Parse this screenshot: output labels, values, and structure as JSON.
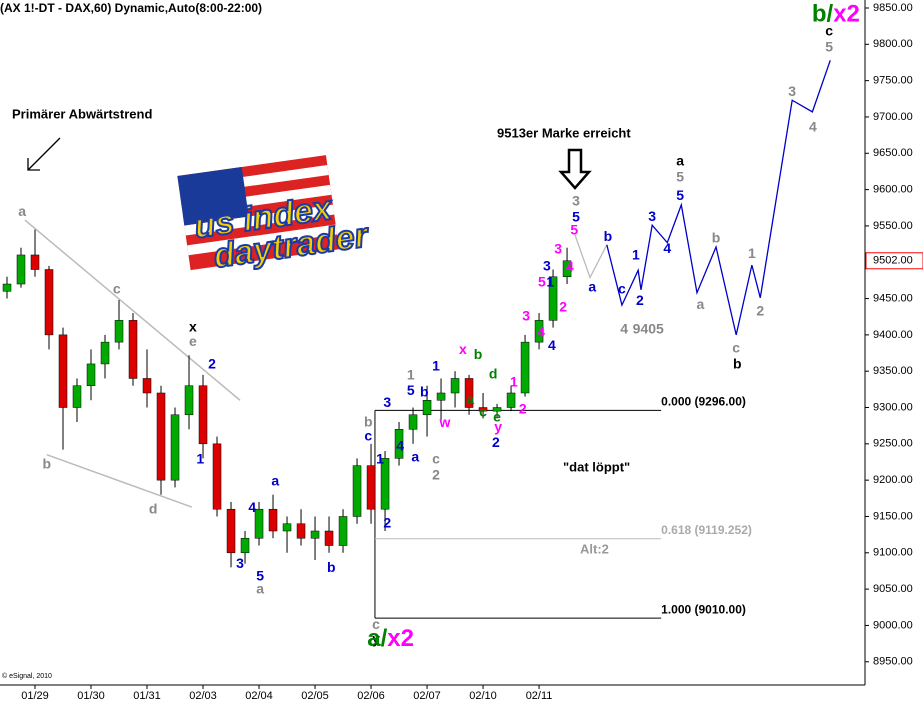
{
  "chart_data": {
    "type": "candlestick",
    "title": "(AX 1!-DT - DAX,60) Dynamic,Auto(8:00-22:00)",
    "copyright": "© eSignal, 2010",
    "xlim": [
      -0.625,
      14.82
    ],
    "xticks": [
      {
        "value": 0,
        "label": "01/29"
      },
      {
        "value": 1,
        "label": "01/30"
      },
      {
        "value": 2,
        "label": "01/31"
      },
      {
        "value": 3,
        "label": "02/03"
      },
      {
        "value": 4,
        "label": "02/04"
      },
      {
        "value": 5,
        "label": "02/05"
      },
      {
        "value": 6,
        "label": "02/06"
      },
      {
        "value": 7,
        "label": "02/07"
      },
      {
        "value": 8,
        "label": "02/10"
      },
      {
        "value": 9,
        "label": "02/11"
      }
    ],
    "ylim": [
      8918,
      9861
    ],
    "yticks": [
      {
        "value": 8950,
        "label": "8950.00"
      },
      {
        "value": 9000,
        "label": "9000.00"
      },
      {
        "value": 9050,
        "label": "9050.00"
      },
      {
        "value": 9100,
        "label": "9100.00"
      },
      {
        "value": 9150,
        "label": "9150.00"
      },
      {
        "value": 9200,
        "label": "9200.00"
      },
      {
        "value": 9250,
        "label": "9250.00"
      },
      {
        "value": 9300,
        "label": "9300.00"
      },
      {
        "value": 9350,
        "label": "9350.00"
      },
      {
        "value": 9400,
        "label": "9400.00"
      },
      {
        "value": 9450,
        "label": "9450.00"
      },
      {
        "value": 9500,
        "label": "9500.00"
      },
      {
        "value": 9550,
        "label": "9550.00"
      },
      {
        "value": 9600,
        "label": "9600.00"
      },
      {
        "value": 9650,
        "label": "9650.00"
      },
      {
        "value": 9700,
        "label": "9700.00"
      },
      {
        "value": 9750,
        "label": "9750.00"
      },
      {
        "value": 9800,
        "label": "9800.00"
      },
      {
        "value": 9850,
        "label": "9850.00"
      }
    ],
    "last_price": {
      "value": 9502,
      "label": "9502.00",
      "color": "#ff0000"
    },
    "up_color": "#00aa00",
    "down_color": "#dd0000",
    "x": [
      -0.5,
      -0.25,
      0,
      0.25,
      0.5,
      0.75,
      1,
      1.25,
      1.5,
      1.75,
      2,
      2.25,
      2.5,
      2.75,
      3,
      3.25,
      3.5,
      3.75,
      4,
      4.25,
      4.5,
      4.75,
      5,
      5.25,
      5.5,
      5.75,
      6,
      6.25,
      6.5,
      6.75,
      7,
      7.25,
      7.5,
      7.75,
      8,
      8.25,
      8.5,
      8.75,
      9,
      9.25,
      9.5
    ],
    "open": [
      9460,
      9470,
      9510,
      9490,
      9400,
      9300,
      9330,
      9360,
      9390,
      9420,
      9340,
      9320,
      9200,
      9290,
      9330,
      9250,
      9160,
      9100,
      9120,
      9160,
      9130,
      9140,
      9120,
      9130,
      9110,
      9150,
      9220,
      9160,
      9230,
      9270,
      9290,
      9310,
      9320,
      9340,
      9300,
      9295,
      9300,
      9320,
      9390,
      9420,
      9480
    ],
    "high": [
      9480,
      9520,
      9545,
      9495,
      9410,
      9340,
      9380,
      9400,
      9448,
      9430,
      9380,
      9330,
      9300,
      9372,
      9345,
      9260,
      9170,
      9130,
      9170,
      9180,
      9150,
      9160,
      9150,
      9150,
      9160,
      9230,
      9250,
      9240,
      9280,
      9300,
      9330,
      9340,
      9350,
      9345,
      9320,
      9305,
      9330,
      9400,
      9430,
      9490,
      9520
    ],
    "low": [
      9450,
      9465,
      9480,
      9380,
      9242,
      9280,
      9310,
      9340,
      9380,
      9330,
      9300,
      9180,
      9190,
      9270,
      9230,
      9150,
      9080,
      9085,
      9110,
      9120,
      9100,
      9110,
      9090,
      9100,
      9100,
      9140,
      9140,
      9130,
      9220,
      9250,
      9260,
      9280,
      9300,
      9290,
      9285,
      9285,
      9295,
      9315,
      9380,
      9410,
      9470
    ],
    "close": [
      9470,
      9510,
      9490,
      9400,
      9300,
      9330,
      9360,
      9390,
      9420,
      9340,
      9320,
      9200,
      9290,
      9330,
      9250,
      9160,
      9100,
      9120,
      9160,
      9130,
      9140,
      9120,
      9130,
      9110,
      9150,
      9220,
      9160,
      9230,
      9270,
      9290,
      9310,
      9320,
      9340,
      9300,
      9295,
      9300,
      9320,
      9390,
      9420,
      9480,
      9502
    ],
    "trendlines": [
      {
        "color": "#bbbbbb",
        "x": [
          -0.18,
          3.66
        ],
        "y": [
          9558,
          9310
        ]
      },
      {
        "color": "#bbbbbb",
        "x": [
          0.21,
          2.8
        ],
        "y": [
          9235,
          9163
        ]
      }
    ],
    "paths": [
      {
        "color": "#bbbbbb",
        "x": [
          9.64,
          9.91,
          10.21
        ],
        "y": [
          9538,
          9479,
          9524
        ]
      },
      {
        "color": "#0000cc",
        "x": [
          10.21,
          10.48,
          10.77,
          10.82,
          11.02,
          11.29,
          11.54,
          11.82,
          12.16,
          12.52,
          12.8,
          12.95,
          13.52,
          13.88,
          14.2
        ],
        "y": [
          9524,
          9441,
          9489,
          9462,
          9551,
          9527,
          9579,
          9458,
          9521,
          9400,
          9496,
          9451,
          9723,
          9707,
          9778
        ]
      }
    ],
    "fib": {
      "x": [
        6.07,
        11.18
      ],
      "levels": [
        {
          "value": 9296,
          "label": "0.000 (9296.00)",
          "color": "#000000"
        },
        {
          "value": 9119.252,
          "label": "0.618 (9119.252)",
          "color": "#bbbbbb"
        },
        {
          "value": 9010,
          "label": "1.000 (9010.00)",
          "color": "#000000"
        }
      ]
    },
    "notes": {
      "trend": "Primärer Abwärtstrend",
      "mark": "9513er Marke erreicht",
      "run": "\"dat löppt\"",
      "alt": "Alt:2"
    },
    "logo": {
      "line1": "us index",
      "line2": "daytrader"
    },
    "compound_labels": [
      {
        "x": 14.3,
        "y": 9840,
        "parts": [
          {
            "text": "b",
            "color": "#008000"
          },
          {
            "text": "/",
            "color": "#008000"
          },
          {
            "text": "x2",
            "color": "#ff00ff"
          }
        ]
      },
      {
        "x": 6.35,
        "y": 8980,
        "parts": [
          {
            "text": "a",
            "color": "#008000"
          },
          {
            "text": "/",
            "color": "#008000"
          },
          {
            "text": "x2",
            "color": "#ff00ff"
          }
        ]
      }
    ],
    "annotations": [
      {
        "text": "a",
        "x": -0.23,
        "y": 9569,
        "color": "#888888"
      },
      {
        "text": "b",
        "x": 0.21,
        "y": 9221,
        "color": "#888888"
      },
      {
        "text": "c",
        "x": 1.46,
        "y": 9462,
        "color": "#888888"
      },
      {
        "text": "d",
        "x": 2.11,
        "y": 9159,
        "color": "#888888"
      },
      {
        "text": "x",
        "x": 2.82,
        "y": 9410,
        "color": "#000000",
        "emphasis": true
      },
      {
        "text": "e",
        "x": 2.82,
        "y": 9390,
        "color": "#888888"
      },
      {
        "text": "2",
        "x": 3.16,
        "y": 9359,
        "color": "#0000cc"
      },
      {
        "text": "1",
        "x": 2.95,
        "y": 9228,
        "color": "#0000cc"
      },
      {
        "text": "4",
        "x": 3.88,
        "y": 9161,
        "color": "#0000cc"
      },
      {
        "text": "a",
        "x": 4.29,
        "y": 9198,
        "color": "#0000cc"
      },
      {
        "text": "3",
        "x": 3.66,
        "y": 9084,
        "color": "#0000cc"
      },
      {
        "text": "5",
        "x": 4.02,
        "y": 9067,
        "color": "#0000cc"
      },
      {
        "text": "a",
        "x": 4.02,
        "y": 9049,
        "color": "#888888"
      },
      {
        "text": "b",
        "x": 5.29,
        "y": 9079,
        "color": "#0000cc"
      },
      {
        "text": "b",
        "x": 5.95,
        "y": 9279,
        "color": "#888888"
      },
      {
        "text": "c",
        "x": 5.95,
        "y": 9260,
        "color": "#0000cc"
      },
      {
        "text": "1",
        "x": 6.16,
        "y": 9228,
        "color": "#0000cc"
      },
      {
        "text": "2",
        "x": 6.29,
        "y": 9140,
        "color": "#0000cc"
      },
      {
        "text": "3",
        "x": 6.29,
        "y": 9306,
        "color": "#0000cc"
      },
      {
        "text": "4",
        "x": 6.52,
        "y": 9246,
        "color": "#0000cc"
      },
      {
        "text": "5",
        "x": 6.71,
        "y": 9322,
        "color": "#0000cc"
      },
      {
        "text": "1",
        "x": 6.71,
        "y": 9344,
        "color": "#888888"
      },
      {
        "text": "b",
        "x": 6.95,
        "y": 9320,
        "color": "#0000cc"
      },
      {
        "text": "a",
        "x": 6.79,
        "y": 9231,
        "color": "#0000cc"
      },
      {
        "text": "c",
        "x": 7.16,
        "y": 9228,
        "color": "#888888"
      },
      {
        "text": "2",
        "x": 7.16,
        "y": 9206,
        "color": "#888888"
      },
      {
        "text": "1",
        "x": 7.16,
        "y": 9356,
        "color": "#0000cc"
      },
      {
        "text": "w",
        "x": 7.32,
        "y": 9278,
        "color": "#ff00ff"
      },
      {
        "text": "x",
        "x": 7.64,
        "y": 9379,
        "color": "#ff00ff"
      },
      {
        "text": "b",
        "x": 7.91,
        "y": 9372,
        "color": "#008000"
      },
      {
        "text": "d",
        "x": 8.18,
        "y": 9345,
        "color": "#008000"
      },
      {
        "text": "a",
        "x": 7.77,
        "y": 9310,
        "color": "#008000"
      },
      {
        "text": "c",
        "x": 8.0,
        "y": 9293,
        "color": "#008000"
      },
      {
        "text": "e",
        "x": 8.25,
        "y": 9286,
        "color": "#008000"
      },
      {
        "text": "y",
        "x": 8.27,
        "y": 9272,
        "color": "#ff00ff"
      },
      {
        "text": "2",
        "x": 8.23,
        "y": 9251,
        "color": "#0000cc"
      },
      {
        "text": "1",
        "x": 8.55,
        "y": 9334,
        "color": "#ff00ff"
      },
      {
        "text": "2",
        "x": 8.71,
        "y": 9297,
        "color": "#ff00ff"
      },
      {
        "text": "3",
        "x": 8.77,
        "y": 9425,
        "color": "#ff00ff"
      },
      {
        "text": "4",
        "x": 9.04,
        "y": 9403,
        "color": "#ff00ff"
      },
      {
        "text": "4",
        "x": 9.23,
        "y": 9384,
        "color": "#0000cc"
      },
      {
        "text": "5",
        "x": 9.05,
        "y": 9472,
        "color": "#ff00ff"
      },
      {
        "text": "1",
        "x": 9.2,
        "y": 9472,
        "color": "#0000cc"
      },
      {
        "text": "2",
        "x": 9.43,
        "y": 9437,
        "color": "#ff00ff"
      },
      {
        "text": "3",
        "x": 9.14,
        "y": 9494,
        "color": "#0000cc"
      },
      {
        "text": "3",
        "x": 9.34,
        "y": 9517,
        "color": "#ff00ff"
      },
      {
        "text": "4",
        "x": 9.55,
        "y": 9492,
        "color": "#ff00ff"
      },
      {
        "text": "5",
        "x": 9.63,
        "y": 9543,
        "color": "#ff00ff"
      },
      {
        "text": "5",
        "x": 9.66,
        "y": 9561,
        "color": "#0000cc"
      },
      {
        "text": "3",
        "x": 9.66,
        "y": 9583,
        "color": "#888888"
      },
      {
        "text": "a",
        "x": 9.95,
        "y": 9465,
        "color": "#0000cc"
      },
      {
        "text": "b",
        "x": 10.23,
        "y": 9534,
        "color": "#0000cc"
      },
      {
        "text": "c",
        "x": 10.48,
        "y": 9462,
        "color": "#0000cc"
      },
      {
        "text": "4",
        "x": 10.52,
        "y": 9407,
        "color": "#888888"
      },
      {
        "text": "9405",
        "x": 10.95,
        "y": 9407,
        "color": "#888888"
      },
      {
        "text": "1",
        "x": 10.73,
        "y": 9509,
        "color": "#0000cc"
      },
      {
        "text": "2",
        "x": 10.8,
        "y": 9446,
        "color": "#0000cc"
      },
      {
        "text": "3",
        "x": 11.02,
        "y": 9562,
        "color": "#0000cc"
      },
      {
        "text": "4",
        "x": 11.29,
        "y": 9518,
        "color": "#0000cc"
      },
      {
        "text": "5",
        "x": 11.52,
        "y": 9591,
        "color": "#0000cc"
      },
      {
        "text": "5",
        "x": 11.52,
        "y": 9616,
        "color": "#888888"
      },
      {
        "text": "a",
        "x": 11.52,
        "y": 9638,
        "color": "#000000",
        "emphasis": true
      },
      {
        "text": "a",
        "x": 11.88,
        "y": 9441,
        "color": "#888888"
      },
      {
        "text": "b",
        "x": 12.16,
        "y": 9532,
        "color": "#888888"
      },
      {
        "text": "1",
        "x": 12.8,
        "y": 9511,
        "color": "#888888"
      },
      {
        "text": "2",
        "x": 12.95,
        "y": 9432,
        "color": "#888888"
      },
      {
        "text": "c",
        "x": 12.52,
        "y": 9381,
        "color": "#888888"
      },
      {
        "text": "b",
        "x": 12.54,
        "y": 9359,
        "color": "#000000",
        "emphasis": true
      },
      {
        "text": "3",
        "x": 13.52,
        "y": 9734,
        "color": "#888888"
      },
      {
        "text": "4",
        "x": 13.89,
        "y": 9685,
        "color": "#888888"
      },
      {
        "text": "5",
        "x": 14.18,
        "y": 9795,
        "color": "#888888"
      },
      {
        "text": "c",
        "x": 14.18,
        "y": 9817,
        "color": "#000000",
        "emphasis": true
      },
      {
        "text": "c",
        "x": 6.09,
        "y": 9000,
        "color": "#888888"
      },
      {
        "text": "y",
        "x": 6.09,
        "y": 8980,
        "color": "#000000",
        "emphasis": true
      }
    ]
  }
}
